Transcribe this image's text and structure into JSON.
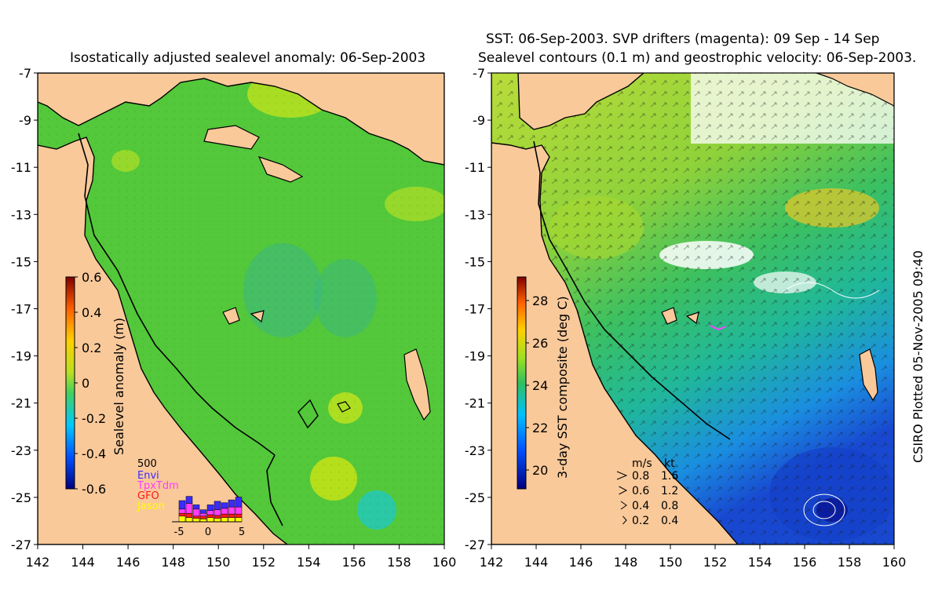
{
  "left_panel": {
    "title": "Isostatically adjusted sealevel anomaly: 06-Sep-2003",
    "colorbar": {
      "label": "Sealevel anomaly (m)",
      "ticks": [
        "0.6",
        "0.4",
        "0.2",
        "0",
        "-0.2",
        "-0.4",
        "-0.6"
      ]
    },
    "inset": {
      "ymax_label": "500",
      "legend": [
        {
          "name": "Envi",
          "color": "#3b2bff"
        },
        {
          "name": "TpxTdm",
          "color": "#ff3cff"
        },
        {
          "name": "GFO",
          "color": "#ff1a1a"
        },
        {
          "name": "Jason",
          "color": "#ffff00"
        }
      ],
      "xticks": [
        "-5",
        "0",
        "5"
      ]
    }
  },
  "right_panel": {
    "title_line1": "SST: 06-Sep-2003. SVP drifters (magenta): 09 Sep - 14 Sep",
    "title_line2": "Sealevel contours (0.1 m) and geostrophic velocity: 06-Sep-2003.",
    "colorbar": {
      "label": "3-day SST composite (deg C)",
      "ticks": [
        "28",
        "26",
        "24",
        "22",
        "20"
      ]
    },
    "velocity_legend": {
      "header_ms": "m/s",
      "header_kt": "kt",
      "rows": [
        {
          "ms": "0.8",
          "kt": "1.6"
        },
        {
          "ms": "0.6",
          "kt": "1.2"
        },
        {
          "ms": "0.4",
          "kt": "0.8"
        },
        {
          "ms": "0.2",
          "kt": "0.4"
        }
      ]
    }
  },
  "axes": {
    "y_ticks": [
      "-7",
      "-9",
      "-11",
      "-13",
      "-15",
      "-17",
      "-19",
      "-21",
      "-23",
      "-25",
      "-27"
    ],
    "x_ticks": [
      "142",
      "144",
      "146",
      "148",
      "150",
      "152",
      "154",
      "156",
      "158",
      "160"
    ]
  },
  "credit": "CSIRO Plotted 05-Nov-2005 09:40",
  "colors": {
    "land": "#f9c99a",
    "sea_sla": "#53c83a",
    "sst_warm": "#a8d82a",
    "sst_cool": "#1e8fd6"
  }
}
